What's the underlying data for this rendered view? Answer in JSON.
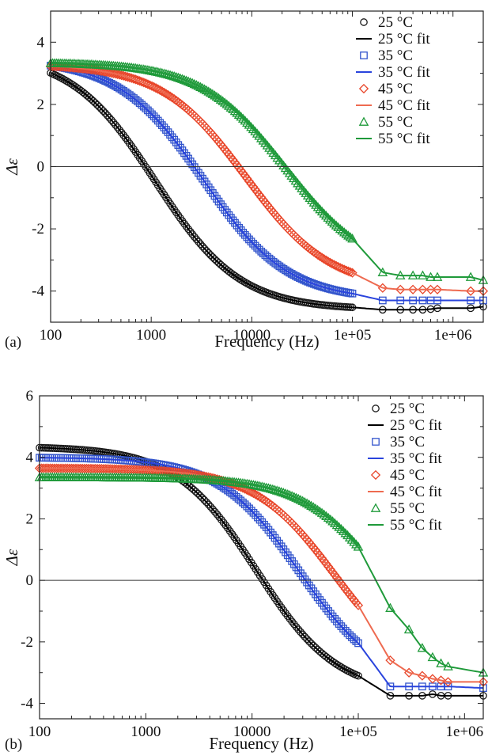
{
  "chart_data": [
    {
      "panel_label": "(a)",
      "type": "scatter",
      "xscale": "log",
      "xlim": [
        100,
        2000000
      ],
      "ylim": [
        -5,
        5
      ],
      "xlabel": "Frequency (Hz)",
      "ylabel": "Δε",
      "grid": false,
      "zero_line": true,
      "legend_position": "top-right",
      "xticks": [
        100,
        1000,
        10000,
        100000,
        1000000
      ],
      "xtick_labels": [
        "100",
        "1000",
        "10000",
        "1e+05",
        "1e+06"
      ],
      "yticks": [
        -4,
        -2,
        0,
        2,
        4
      ],
      "ytick_labels": [
        "-4",
        "-2",
        "0",
        "2",
        "4"
      ],
      "legend": [
        "25 °C",
        "25 °C fit",
        "35 °C",
        "35 °C fit",
        "45 °C",
        "45 °C fit",
        "55 °C",
        "55 °C fit"
      ],
      "series": [
        {
          "name": "25 °C",
          "fit_name": "25 °C fit",
          "marker": "circle",
          "color": "#1a1a1a",
          "fit_color": "#000000",
          "model": {
            "high": 3.65,
            "low": -4.6,
            "fc": 1100,
            "width": 0.42
          },
          "sparse_points": [
            [
              200000,
              -4.6
            ],
            [
              300000,
              -4.6
            ],
            [
              400000,
              -4.6
            ],
            [
              500000,
              -4.6
            ],
            [
              600000,
              -4.58
            ],
            [
              700000,
              -4.55
            ],
            [
              1500000,
              -4.55
            ],
            [
              2000000,
              -4.5
            ]
          ]
        },
        {
          "name": "35 °C",
          "fit_name": "35 °C fit",
          "marker": "square",
          "color": "#3355cc",
          "fit_color": "#2a44dd",
          "model": {
            "high": 3.45,
            "low": -4.3,
            "fc": 3300,
            "width": 0.42
          },
          "sparse_points": [
            [
              200000,
              -4.3
            ],
            [
              300000,
              -4.3
            ],
            [
              400000,
              -4.3
            ],
            [
              500000,
              -4.3
            ],
            [
              600000,
              -4.3
            ],
            [
              700000,
              -4.3
            ],
            [
              1500000,
              -4.3
            ],
            [
              2000000,
              -4.3
            ]
          ]
        },
        {
          "name": "45 °C",
          "fit_name": "45 °C fit",
          "marker": "diamond",
          "color": "#e8462a",
          "fit_color": "#ee6a50",
          "model": {
            "high": 3.3,
            "low": -3.95,
            "fc": 8700,
            "width": 0.42
          },
          "sparse_points": [
            [
              200000,
              -3.9
            ],
            [
              300000,
              -3.95
            ],
            [
              400000,
              -3.95
            ],
            [
              500000,
              -3.95
            ],
            [
              600000,
              -3.95
            ],
            [
              700000,
              -3.95
            ],
            [
              1500000,
              -4.0
            ],
            [
              2000000,
              -4.0
            ]
          ]
        },
        {
          "name": "55 °C",
          "fit_name": "55 °C fit",
          "marker": "triangle",
          "color": "#1f9a3a",
          "fit_color": "#1f9a3a",
          "model": {
            "high": 3.35,
            "low": -3.5,
            "fc": 22000,
            "width": 0.42
          },
          "sparse_points": [
            [
              200000,
              -3.4
            ],
            [
              300000,
              -3.5
            ],
            [
              400000,
              -3.5
            ],
            [
              500000,
              -3.5
            ],
            [
              600000,
              -3.55
            ],
            [
              700000,
              -3.55
            ],
            [
              1500000,
              -3.55
            ],
            [
              2000000,
              -3.65
            ]
          ]
        }
      ]
    },
    {
      "panel_label": "(b)",
      "type": "scatter",
      "xscale": "log",
      "xlim": [
        100,
        1500000
      ],
      "ylim": [
        -4.5,
        6
      ],
      "xlabel": "Frequency (Hz)",
      "ylabel": "Δε",
      "grid": false,
      "zero_line": true,
      "legend_position": "top-right",
      "xticks": [
        100,
        1000,
        10000,
        100000,
        1000000
      ],
      "xtick_labels": [
        "100",
        "1000",
        "10000",
        "1e+05",
        "1e+06"
      ],
      "yticks": [
        -4,
        -2,
        0,
        2,
        4,
        6
      ],
      "ytick_labels": [
        "-4",
        "-2",
        "0",
        "2",
        "4",
        "6"
      ],
      "legend": [
        "25 °C",
        "25 °C fit",
        "35 °C",
        "35 °C fit",
        "45 °C",
        "45 °C fit",
        "55 °C",
        "55 °C fit"
      ],
      "series": [
        {
          "name": "25 °C",
          "fit_name": "25 °C fit",
          "marker": "circle",
          "color": "#1a1a1a",
          "fit_color": "#000000",
          "model": {
            "high": 4.35,
            "low": -3.7,
            "fc": 11000,
            "width": 0.38
          },
          "sparse_points": [
            [
              200000,
              -3.75
            ],
            [
              300000,
              -3.75
            ],
            [
              400000,
              -3.75
            ],
            [
              500000,
              -3.7
            ],
            [
              600000,
              -3.75
            ],
            [
              700000,
              -3.75
            ],
            [
              1500000,
              -3.75
            ]
          ]
        },
        {
          "name": "35 °C",
          "fit_name": "35 °C fit",
          "marker": "square",
          "color": "#3355cc",
          "fit_color": "#2a44dd",
          "model": {
            "high": 4.0,
            "low": -3.45,
            "fc": 28000,
            "width": 0.38
          },
          "sparse_points": [
            [
              200000,
              -3.45
            ],
            [
              300000,
              -3.45
            ],
            [
              400000,
              -3.45
            ],
            [
              500000,
              -3.45
            ],
            [
              600000,
              -3.45
            ],
            [
              700000,
              -3.45
            ],
            [
              1500000,
              -3.5
            ]
          ]
        },
        {
          "name": "45 °C",
          "fit_name": "45 °C fit",
          "marker": "diamond",
          "color": "#e8462a",
          "fit_color": "#ee6a50",
          "model": {
            "high": 3.65,
            "low": -3.3,
            "fc": 60000,
            "width": 0.38
          },
          "sparse_points": [
            [
              200000,
              -2.6
            ],
            [
              300000,
              -3.0
            ],
            [
              400000,
              -3.1
            ],
            [
              500000,
              -3.2
            ],
            [
              600000,
              -3.25
            ],
            [
              700000,
              -3.3
            ],
            [
              1500000,
              -3.3
            ]
          ]
        },
        {
          "name": "55 °C",
          "fit_name": "55 °C fit",
          "marker": "triangle",
          "color": "#1f9a3a",
          "fit_color": "#1f9a3a",
          "model": {
            "high": 3.35,
            "low": -3.05,
            "fc": 170000,
            "width": 0.38
          },
          "sparse_points": [
            [
              200000,
              -0.9
            ],
            [
              300000,
              -1.6
            ],
            [
              400000,
              -2.2
            ],
            [
              500000,
              -2.5
            ],
            [
              600000,
              -2.7
            ],
            [
              700000,
              -2.8
            ],
            [
              1500000,
              -3.0
            ]
          ]
        }
      ]
    }
  ]
}
